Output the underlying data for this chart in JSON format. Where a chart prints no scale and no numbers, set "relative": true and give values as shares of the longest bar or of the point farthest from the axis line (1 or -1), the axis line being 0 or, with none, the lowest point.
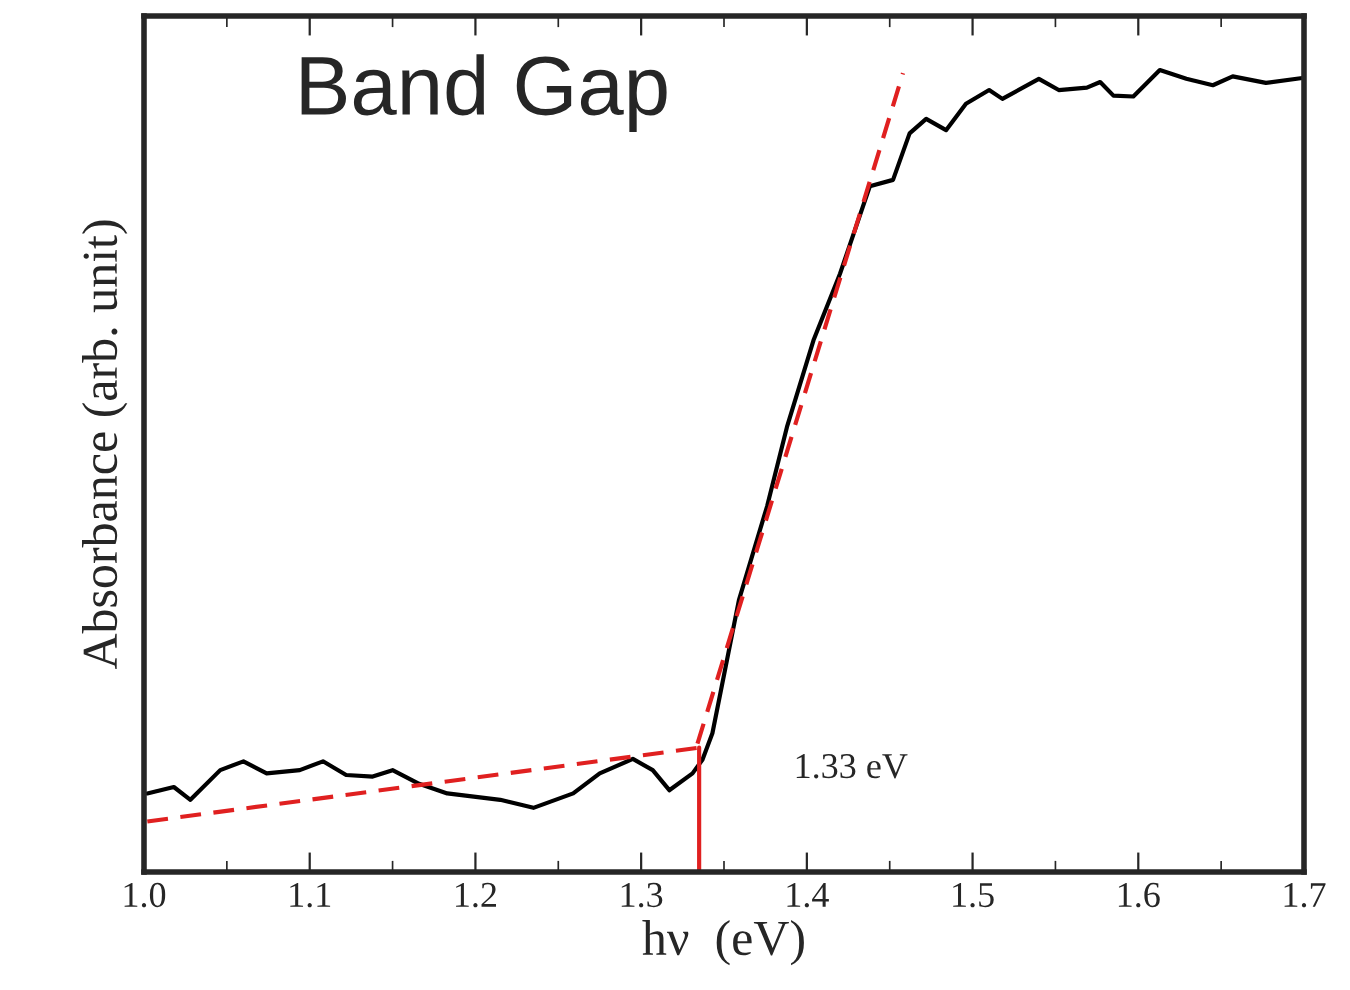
{
  "chart_data": {
    "type": "line",
    "relative": true,
    "xlabel": "hν  (eV)",
    "ylabel": "Absorbance (arb. unit)",
    "xlim": [
      1.0,
      1.7
    ],
    "xticks": [
      {
        "value": 1.0,
        "label": "1.0"
      },
      {
        "value": 1.1,
        "label": "1.1"
      },
      {
        "value": 1.2,
        "label": "1.2"
      },
      {
        "value": 1.3,
        "label": "1.3"
      },
      {
        "value": 1.4,
        "label": "1.4"
      },
      {
        "value": 1.5,
        "label": "1.5"
      },
      {
        "value": 1.6,
        "label": "1.6"
      },
      {
        "value": 1.7,
        "label": "1.7"
      }
    ],
    "tick_labels": "x",
    "grid": false,
    "legend": false,
    "annotations": [
      "Band Gap",
      "1.33 eV"
    ],
    "series": [
      {
        "color": "#000000",
        "line_style": "solid",
        "x": [
          1.002,
          1.018,
          1.028,
          1.046,
          1.06,
          1.074,
          1.094,
          1.108,
          1.122,
          1.138,
          1.15,
          1.166,
          1.183,
          1.199,
          1.215,
          1.235,
          1.259,
          1.275,
          1.295,
          1.307,
          1.317,
          1.331,
          1.337,
          1.343,
          1.359,
          1.376,
          1.388,
          1.404,
          1.42,
          1.438,
          1.452,
          1.462,
          1.472,
          1.484,
          1.496,
          1.51,
          1.518,
          1.54,
          1.552,
          1.569,
          1.577,
          1.585,
          1.597,
          1.613,
          1.629,
          1.645,
          1.657,
          1.677,
          1.699
        ],
        "values": [
          0.098,
          0.106,
          0.09,
          0.127,
          0.138,
          0.123,
          0.127,
          0.138,
          0.121,
          0.119,
          0.127,
          0.11,
          0.098,
          0.094,
          0.09,
          0.08,
          0.098,
          0.123,
          0.141,
          0.127,
          0.102,
          0.123,
          0.14,
          0.173,
          0.339,
          0.456,
          0.555,
          0.663,
          0.746,
          0.855,
          0.863,
          0.921,
          0.939,
          0.925,
          0.958,
          0.975,
          0.964,
          0.989,
          0.975,
          0.978,
          0.985,
          0.968,
          0.967,
          1.0,
          0.989,
          0.981,
          0.992,
          0.984,
          0.99
        ]
      },
      {
        "color": "#e02020",
        "line_style": "dashed",
        "x": [
          1.002,
          1.335
        ],
        "values": [
          0.063,
          0.155
        ]
      },
      {
        "color": "#e02020",
        "line_style": "dashed",
        "x": [
          1.334,
          1.458
        ],
        "values": [
          0.16,
          0.996
        ]
      },
      {
        "color": "#e02020",
        "line_style": "solid",
        "x": [
          1.335,
          1.335
        ],
        "values": [
          0,
          0.155
        ]
      }
    ]
  }
}
